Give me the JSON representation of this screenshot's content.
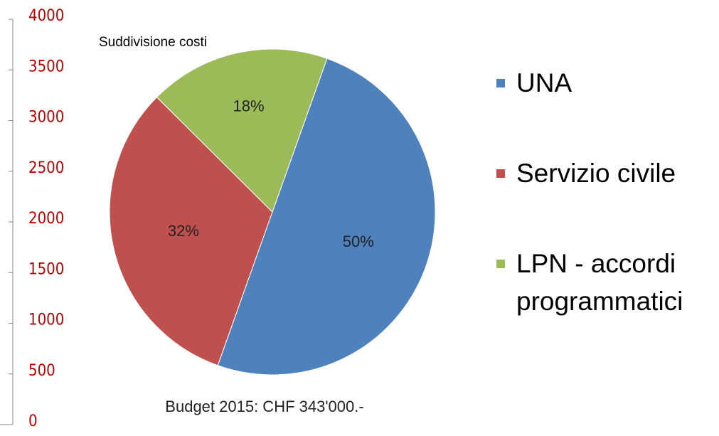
{
  "chart_data": {
    "type": "pie",
    "title": "Suddivisione costi",
    "subtitle": "Budget 2015: CHF 343'000.-",
    "categories": [
      "UNA",
      "Servizio civile",
      "LPN - accordi programmatici"
    ],
    "values": [
      50,
      32,
      18
    ],
    "value_labels": [
      "50%",
      "32%",
      "18%"
    ],
    "colors": [
      "#4f81bd",
      "#c0504d",
      "#9bbb59"
    ],
    "ylim": [
      0,
      4000
    ],
    "yticks": [
      0,
      500,
      1000,
      1500,
      2000,
      2500,
      3000,
      3500,
      4000
    ],
    "legend": "right"
  }
}
